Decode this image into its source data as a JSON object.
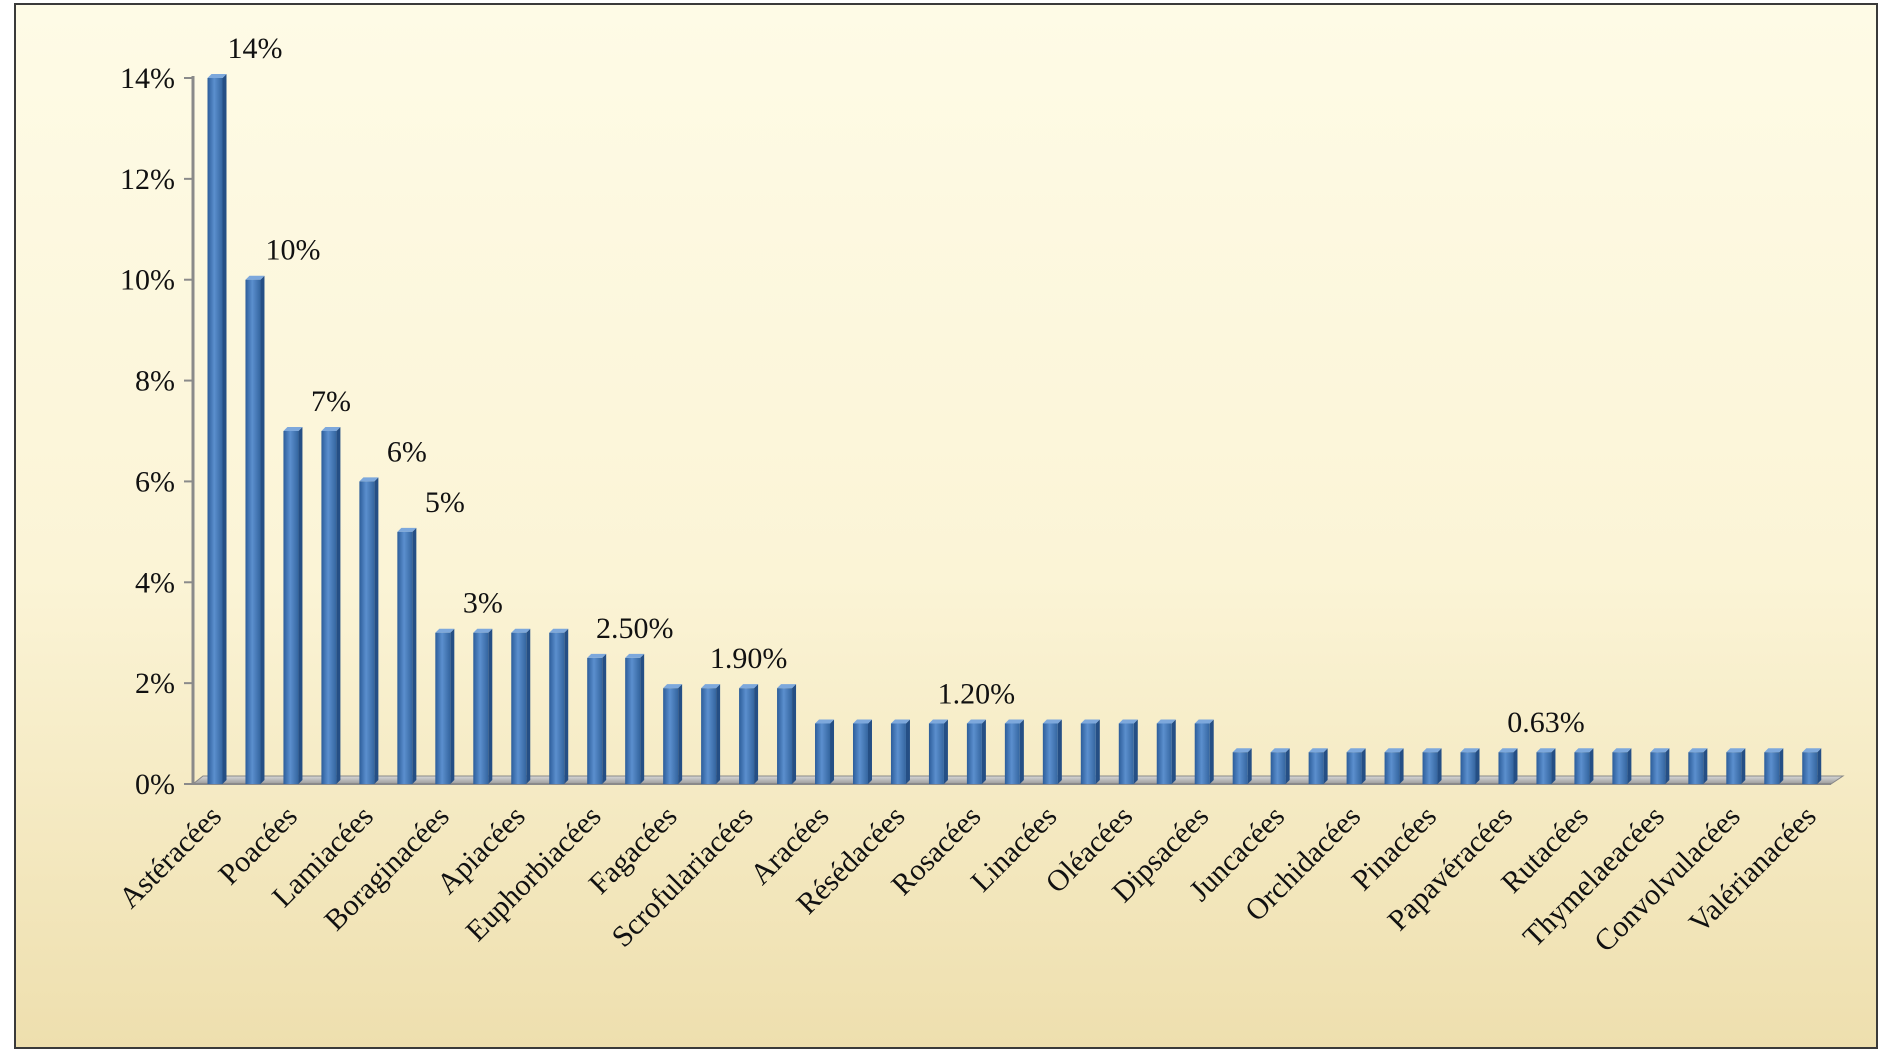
{
  "chart_data": {
    "type": "bar",
    "title": "",
    "xlabel": "",
    "ylabel": "",
    "ylim": [
      0,
      14
    ],
    "y_ticks": [
      "0%",
      "2%",
      "4%",
      "6%",
      "8%",
      "10%",
      "12%",
      "14%"
    ],
    "y_tick_values": [
      0,
      2,
      4,
      6,
      8,
      10,
      12,
      14
    ],
    "grid": false,
    "legend": "none",
    "bar_color": "#4f81bd",
    "categories": [
      "Astéracées",
      "",
      "Poacées",
      "",
      "Lamiacées",
      "",
      "Boraginacées",
      "",
      "Apiacées",
      "",
      "Euphorbiacées",
      "",
      "Fagacées",
      "",
      "Scrofulariacées",
      "",
      "Aracées",
      "",
      "Résédacées",
      "",
      "Rosacées",
      "",
      "Linacées",
      "",
      "Oléacées",
      "",
      "Dipsacées",
      "",
      "Juncacées",
      "",
      "Orchidacées",
      "",
      "Pinacées",
      "",
      "Papavéracées",
      "",
      "Rutacées",
      "",
      "Thymelaeacées",
      "",
      "Convolvulacées",
      "",
      "Valérianacées"
    ],
    "values": [
      14,
      10,
      7,
      7,
      6,
      5,
      3,
      3,
      3,
      3,
      2.5,
      2.5,
      1.9,
      1.9,
      1.9,
      1.9,
      1.2,
      1.2,
      1.2,
      1.2,
      1.2,
      1.2,
      1.2,
      1.2,
      1.2,
      1.2,
      1.2,
      0.63,
      0.63,
      0.63,
      0.63,
      0.63,
      0.63,
      0.63,
      0.63,
      0.63,
      0.63,
      0.63,
      0.63,
      0.63,
      0.63,
      0.63,
      0.63
    ],
    "data_labels": [
      {
        "index": 0,
        "text": "14%"
      },
      {
        "index": 1,
        "text": "10%"
      },
      {
        "index": 2,
        "text": "7%"
      },
      {
        "index": 4,
        "text": "6%"
      },
      {
        "index": 5,
        "text": "5%"
      },
      {
        "index": 6,
        "text": "3%"
      },
      {
        "index": 10,
        "text": "2.50%"
      },
      {
        "index": 13,
        "text": "1.90%"
      },
      {
        "index": 19,
        "text": "1.20%"
      },
      {
        "index": 34,
        "text": "0.63%"
      }
    ]
  }
}
